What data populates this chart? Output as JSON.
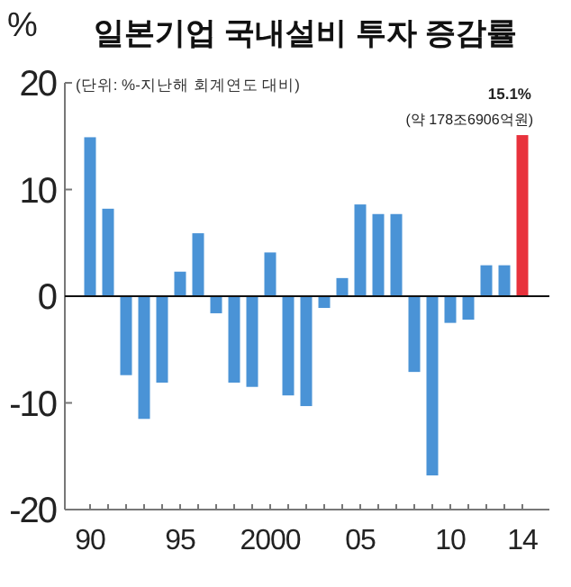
{
  "chart_data": {
    "type": "bar",
    "title": "일본기업 국내설비 투자 증감률",
    "subtitle": "(단위: %-지난해 회계연도 대비)",
    "ylabel": "%",
    "categories": [
      "90",
      null,
      null,
      null,
      null,
      "95",
      null,
      null,
      null,
      null,
      "2000",
      null,
      null,
      null,
      null,
      "05",
      null,
      null,
      null,
      null,
      "10",
      null,
      null,
      null,
      "14"
    ],
    "values": [
      14.9,
      8.2,
      -7.4,
      -11.5,
      -8.1,
      2.3,
      5.9,
      -1.6,
      -8.1,
      -8.5,
      4.1,
      -9.3,
      -10.3,
      -1.1,
      1.7,
      8.6,
      7.7,
      7.7,
      -7.1,
      -16.8,
      -2.5,
      -2.2,
      2.9,
      2.9,
      15.1
    ],
    "colors": [
      "#4a93d6",
      "#4a93d6",
      "#4a93d6",
      "#4a93d6",
      "#4a93d6",
      "#4a93d6",
      "#4a93d6",
      "#4a93d6",
      "#4a93d6",
      "#4a93d6",
      "#4a93d6",
      "#4a93d6",
      "#4a93d6",
      "#4a93d6",
      "#4a93d6",
      "#4a93d6",
      "#4a93d6",
      "#4a93d6",
      "#4a93d6",
      "#4a93d6",
      "#4a93d6",
      "#4a93d6",
      "#4a93d6",
      "#4a93d6",
      "#e8323c"
    ],
    "ylim": [
      -20,
      20
    ],
    "yticks": [
      20,
      10,
      0,
      -10,
      -20
    ],
    "annotations": [
      {
        "text": "15.1%",
        "x": "14",
        "y": 15.1
      },
      "(약 178조6906억원)"
    ]
  }
}
